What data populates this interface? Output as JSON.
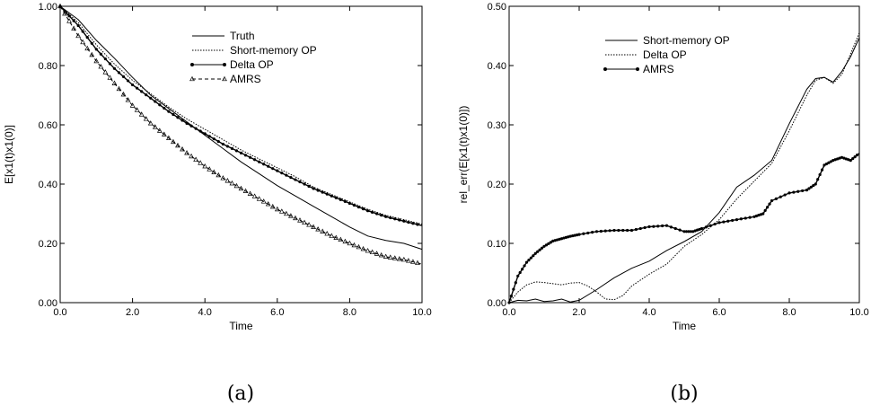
{
  "chart_data": [
    {
      "type": "line",
      "caption": "(a)",
      "xlabel": "Time",
      "ylabel": "E[x1(t)x1(0)]",
      "xlim": [
        0,
        10
      ],
      "ylim": [
        0,
        1
      ],
      "xticks": [
        "0.0",
        "2.0",
        "4.0",
        "6.0",
        "8.0",
        "10.0"
      ],
      "yticks": [
        "0.00",
        "0.20",
        "0.40",
        "0.60",
        "0.80",
        "1.00"
      ],
      "legend_position": "top-right",
      "series": [
        {
          "name": "Truth",
          "style": "solid",
          "x": [
            0,
            0.5,
            1,
            1.5,
            2,
            2.5,
            3,
            3.5,
            4,
            4.5,
            5,
            5.5,
            6,
            6.5,
            7,
            7.5,
            8,
            8.5,
            9,
            9.5,
            10
          ],
          "values": [
            1.0,
            0.955,
            0.885,
            0.825,
            0.76,
            0.7,
            0.655,
            0.61,
            0.565,
            0.52,
            0.475,
            0.435,
            0.395,
            0.36,
            0.325,
            0.29,
            0.255,
            0.225,
            0.21,
            0.2,
            0.18
          ]
        },
        {
          "name": "Short-memory OP",
          "style": "dotted",
          "x": [
            0,
            0.5,
            1,
            1.5,
            2,
            2.5,
            3,
            3.5,
            4,
            4.5,
            5,
            5.5,
            6,
            6.5,
            7,
            7.5,
            8,
            8.5,
            9,
            9.5,
            10
          ],
          "values": [
            1.0,
            0.945,
            0.87,
            0.805,
            0.75,
            0.705,
            0.66,
            0.62,
            0.585,
            0.55,
            0.515,
            0.485,
            0.455,
            0.425,
            0.39,
            0.365,
            0.34,
            0.315,
            0.295,
            0.28,
            0.265
          ]
        },
        {
          "name": "Delta OP",
          "style": "solid-dot",
          "x": [
            0,
            0.5,
            1,
            1.5,
            2,
            2.5,
            3,
            3.5,
            4,
            4.5,
            5,
            5.5,
            6,
            6.5,
            7,
            7.5,
            8,
            8.5,
            9,
            9.5,
            10
          ],
          "values": [
            1.0,
            0.935,
            0.855,
            0.79,
            0.735,
            0.69,
            0.645,
            0.605,
            0.57,
            0.535,
            0.505,
            0.475,
            0.445,
            0.415,
            0.385,
            0.36,
            0.335,
            0.31,
            0.29,
            0.275,
            0.26
          ]
        },
        {
          "name": "AMRS",
          "style": "dashed-triangle",
          "x": [
            0,
            0.5,
            1,
            1.5,
            2,
            2.5,
            3,
            3.5,
            4,
            4.5,
            5,
            5.5,
            6,
            6.5,
            7,
            7.5,
            8,
            8.5,
            9,
            9.5,
            10
          ],
          "values": [
            1.0,
            0.9,
            0.815,
            0.74,
            0.665,
            0.605,
            0.555,
            0.505,
            0.46,
            0.42,
            0.385,
            0.35,
            0.315,
            0.285,
            0.255,
            0.225,
            0.2,
            0.175,
            0.155,
            0.145,
            0.13
          ]
        }
      ]
    },
    {
      "type": "line",
      "caption": "(b)",
      "xlabel": "Time",
      "ylabel": "rel_err(E[x1(t)x1(0)])",
      "xlim": [
        0,
        10
      ],
      "ylim": [
        0,
        0.5
      ],
      "xticks": [
        "0.0",
        "2.0",
        "4.0",
        "6.0",
        "8.0",
        "10.0"
      ],
      "yticks": [
        "0.00",
        "0.10",
        "0.20",
        "0.30",
        "0.40",
        "0.50"
      ],
      "legend_position": "top-center",
      "series": [
        {
          "name": "Short-memory OP",
          "style": "solid",
          "x": [
            0,
            0.25,
            0.5,
            0.75,
            1,
            1.25,
            1.5,
            1.75,
            2,
            2.5,
            3,
            3.5,
            4,
            4.5,
            5,
            5.5,
            6,
            6.5,
            7,
            7.5,
            8,
            8.5,
            8.75,
            9,
            9.25,
            9.5,
            9.75,
            10
          ],
          "values": [
            0,
            0.004,
            0.003,
            0.006,
            0.002,
            0.003,
            0.006,
            0.001,
            0.004,
            0.022,
            0.042,
            0.058,
            0.07,
            0.088,
            0.103,
            0.12,
            0.152,
            0.195,
            0.215,
            0.24,
            0.302,
            0.36,
            0.378,
            0.38,
            0.372,
            0.39,
            0.415,
            0.447
          ]
        },
        {
          "name": "Delta OP",
          "style": "dotted",
          "x": [
            0,
            0.25,
            0.5,
            0.75,
            1,
            1.25,
            1.5,
            1.75,
            2,
            2.25,
            2.5,
            2.75,
            3,
            3.25,
            3.5,
            4,
            4.5,
            5,
            5.5,
            6,
            6.5,
            7,
            7.5,
            8,
            8.5,
            8.75,
            9,
            9.25,
            9.5,
            9.75,
            10
          ],
          "values": [
            0,
            0.018,
            0.03,
            0.035,
            0.034,
            0.032,
            0.03,
            0.033,
            0.034,
            0.028,
            0.018,
            0.006,
            0.005,
            0.012,
            0.028,
            0.048,
            0.065,
            0.095,
            0.115,
            0.14,
            0.175,
            0.205,
            0.235,
            0.29,
            0.35,
            0.375,
            0.38,
            0.37,
            0.385,
            0.42,
            0.455
          ]
        },
        {
          "name": "AMRS",
          "style": "solid-dot",
          "x": [
            0,
            0.25,
            0.5,
            0.75,
            1,
            1.25,
            1.5,
            1.75,
            2,
            2.5,
            3,
            3.5,
            4,
            4.5,
            5,
            5.25,
            5.5,
            6,
            6.5,
            7,
            7.25,
            7.5,
            8,
            8.5,
            8.75,
            9,
            9.25,
            9.5,
            9.75,
            10
          ],
          "values": [
            0,
            0.045,
            0.068,
            0.083,
            0.095,
            0.104,
            0.108,
            0.112,
            0.115,
            0.12,
            0.122,
            0.122,
            0.128,
            0.13,
            0.12,
            0.12,
            0.125,
            0.135,
            0.14,
            0.145,
            0.15,
            0.172,
            0.185,
            0.19,
            0.2,
            0.232,
            0.24,
            0.245,
            0.24,
            0.252
          ]
        }
      ]
    }
  ]
}
